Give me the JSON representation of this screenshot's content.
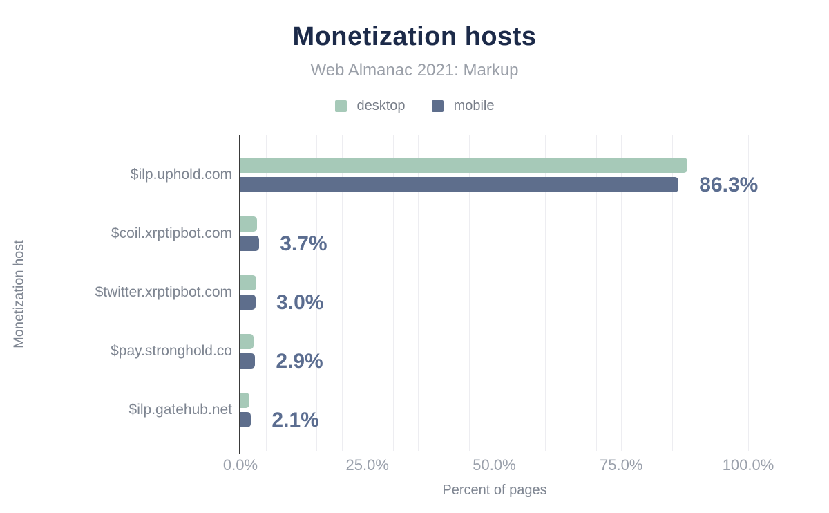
{
  "chart": {
    "title": "Monetization hosts",
    "subtitle": "Web Almanac 2021: Markup",
    "xlabel": "Percent of pages",
    "ylabel": "Monetization host"
  },
  "legend": {
    "items": [
      {
        "label": "desktop",
        "color": "#a6c9b8"
      },
      {
        "label": "mobile",
        "color": "#5e6e8c"
      }
    ]
  },
  "colors": {
    "title": "#1c2a49",
    "subtitle": "#9a9fa8",
    "desktop_bar": "#a6c9b8",
    "mobile_bar": "#5e6e8c",
    "value_label": "#5b6d90",
    "category_label": "#7e8591",
    "tick_label": "#9aa0ab",
    "gridline": "#ededf1",
    "axis_line": "#3a3a3a"
  },
  "chart_data": {
    "type": "bar",
    "orientation": "horizontal",
    "title": "Monetization hosts",
    "subtitle": "Web Almanac 2021: Markup",
    "xlabel": "Percent of pages",
    "ylabel": "Monetization host",
    "legend_position": "top",
    "grid": "vertical, every 5%",
    "xlim": [
      0,
      100
    ],
    "categories": [
      "$ilp.uphold.com",
      "$coil.xrptipbot.com",
      "$twitter.xrptipbot.com",
      "$pay.stronghold.co",
      "$ilp.gatehub.net"
    ],
    "series": [
      {
        "name": "desktop",
        "color": "#a6c9b8",
        "values": [
          88.0,
          3.3,
          3.1,
          2.6,
          1.8
        ]
      },
      {
        "name": "mobile",
        "color": "#5e6e8c",
        "values": [
          86.3,
          3.7,
          3.0,
          2.9,
          2.1
        ]
      }
    ],
    "value_labels": [
      "86.3%",
      "3.7%",
      "3.0%",
      "2.9%",
      "2.1%"
    ],
    "value_labels_series": "mobile",
    "x_ticks": [
      {
        "value": 0,
        "label": "0.0%"
      },
      {
        "value": 25,
        "label": "25.0%"
      },
      {
        "value": 50,
        "label": "50.0%"
      },
      {
        "value": 75,
        "label": "75.0%"
      },
      {
        "value": 100,
        "label": "100.0%"
      }
    ]
  }
}
